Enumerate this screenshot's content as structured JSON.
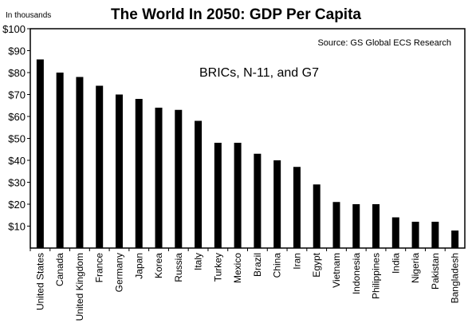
{
  "chart_data": {
    "type": "bar",
    "title": "The World In 2050: GDP Per Capita",
    "unit_note": "In thousands",
    "source": "Source: GS Global ECS Research",
    "annotation": "BRICs, N-11, and G7",
    "categories": [
      "United States",
      "Canada",
      "United Kingdom",
      "France",
      "Germany",
      "Japan",
      "Korea",
      "Russia",
      "Italy",
      "Turkey",
      "Mexico",
      "Brazil",
      "China",
      "Iran",
      "Egypt",
      "Vietnam",
      "Indonesia",
      "Philippines",
      "India",
      "Nigeria",
      "Pakistan",
      "Bangladesh"
    ],
    "values": [
      86,
      80,
      78,
      74,
      70,
      68,
      64,
      63,
      58,
      48,
      48,
      43,
      40,
      37,
      29,
      21,
      20,
      20,
      14,
      12,
      12,
      8
    ],
    "y_ticks": [
      "$10",
      "$20",
      "$30",
      "$40",
      "$50",
      "$60",
      "$70",
      "$80",
      "$90",
      "$100"
    ],
    "y_tick_values": [
      10,
      20,
      30,
      40,
      50,
      60,
      70,
      80,
      90,
      100
    ],
    "ylim": [
      0,
      100
    ],
    "xlabel": "",
    "ylabel": "",
    "grid": false,
    "legend": "none",
    "colors": {
      "bar": "#000000",
      "axis": "#000000",
      "background": "#ffffff"
    }
  }
}
